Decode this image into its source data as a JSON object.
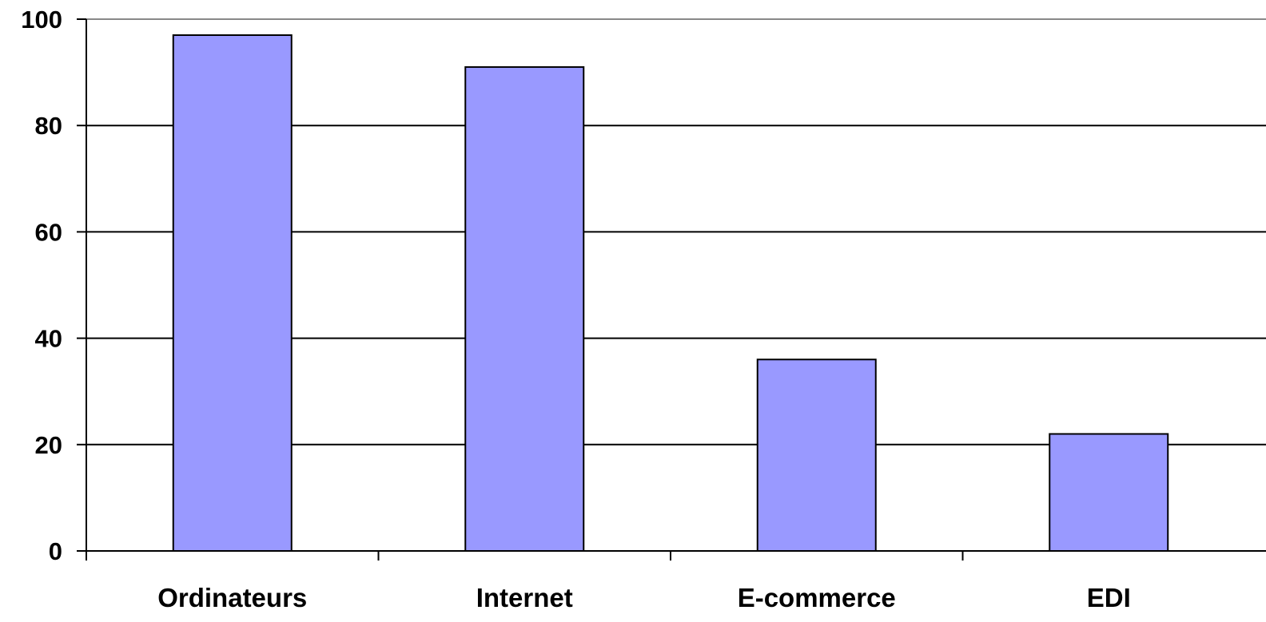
{
  "chart_data": {
    "type": "bar",
    "title": "",
    "xlabel": "",
    "ylabel": "",
    "categories": [
      "Ordinateurs",
      "Internet",
      "E-commerce",
      "EDI"
    ],
    "values": [
      97,
      91,
      36,
      22
    ],
    "ylim": [
      0,
      100
    ],
    "yticks": [
      "0",
      "20",
      "40",
      "60",
      "80",
      "100"
    ],
    "grid": true,
    "legend": "none",
    "colors": {
      "bar_fill": "#9999ff",
      "bar_stroke": "#000000",
      "gridline": "#000000",
      "axis": "#000000",
      "background": "#ffffff"
    }
  }
}
